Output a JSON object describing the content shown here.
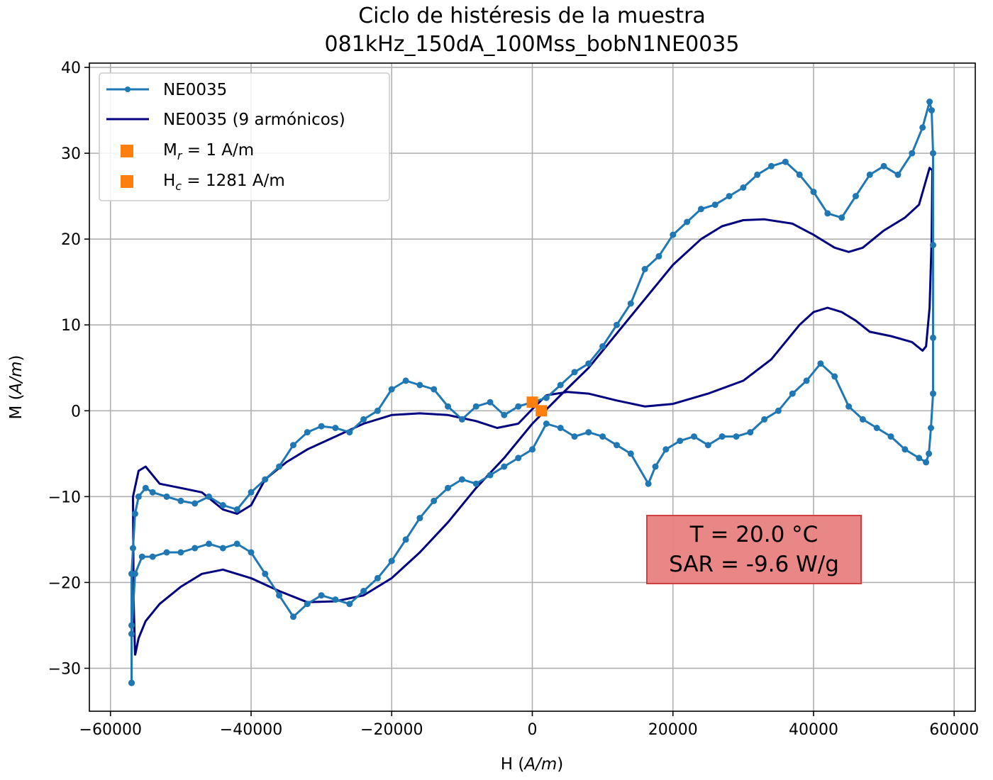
{
  "chart_data": {
    "type": "line",
    "title": [
      "Ciclo de histéresis de la muestra",
      "081kHz_150dA_100Mss_bobN1NE0035"
    ],
    "xlabel": "H (A/m)",
    "ylabel": "M (A/m)",
    "xlabel_parts": {
      "main": "H (",
      "unit": "A/m",
      "close": ")"
    },
    "ylabel_parts": {
      "main": "M (",
      "unit": "A/m",
      "close": ")"
    },
    "xlim": [
      -63000,
      63000
    ],
    "ylim": [
      -35,
      40.5
    ],
    "xticks": [
      -60000,
      -40000,
      -20000,
      0,
      20000,
      40000,
      60000
    ],
    "xtick_labels": [
      "−60000",
      "−40000",
      "−20000",
      "0",
      "20000",
      "40000",
      "60000"
    ],
    "yticks": [
      -30,
      -20,
      -10,
      0,
      10,
      20,
      30,
      40
    ],
    "ytick_labels": [
      "−30",
      "−20",
      "−10",
      "0",
      "10",
      "20",
      "30",
      "40"
    ],
    "grid": true,
    "legend": {
      "placement": "upper-left",
      "entries": [
        {
          "label": "NE0035",
          "style": "line-marker",
          "color": "#1f77b4"
        },
        {
          "label": "NE0035 (9 armónicos)",
          "style": "line",
          "color": "#000080"
        },
        {
          "label_main": "M",
          "label_sub": "r",
          "label_rest": " = 1 A/m",
          "style": "square",
          "color": "#ff7f0e"
        },
        {
          "label_main": "H",
          "label_sub": "c",
          "label_rest": " = 1281 A/m",
          "style": "square",
          "color": "#ff7f0e"
        }
      ]
    },
    "annotation": {
      "lines": [
        "T = 20.0 °C",
        "SAR = -9.6 W/g"
      ],
      "facecolor": "#e88080",
      "edgecolor": "#d04040"
    },
    "series": [
      {
        "name": "NE0035",
        "color": "#1f77b4",
        "marker": "circle",
        "points": [
          [
            -57000,
            -31.7
          ],
          [
            -57000,
            -25
          ],
          [
            -57000,
            -19
          ],
          [
            -56800,
            -16
          ],
          [
            -56500,
            -12
          ],
          [
            -56000,
            -10
          ],
          [
            -55000,
            -9
          ],
          [
            -54000,
            -9.5
          ],
          [
            -52000,
            -10
          ],
          [
            -50000,
            -10.5
          ],
          [
            -48000,
            -10.8
          ],
          [
            -46000,
            -10
          ],
          [
            -44000,
            -11
          ],
          [
            -42000,
            -11.5
          ],
          [
            -40000,
            -9.5
          ],
          [
            -38000,
            -8
          ],
          [
            -36000,
            -6.5
          ],
          [
            -34000,
            -4
          ],
          [
            -32000,
            -2.5
          ],
          [
            -30000,
            -1.8
          ],
          [
            -28000,
            -2
          ],
          [
            -26000,
            -2.5
          ],
          [
            -24000,
            -1
          ],
          [
            -22000,
            0
          ],
          [
            -20000,
            2.5
          ],
          [
            -18000,
            3.5
          ],
          [
            -16000,
            3
          ],
          [
            -14000,
            2.5
          ],
          [
            -12000,
            0.5
          ],
          [
            -10000,
            -1
          ],
          [
            -8000,
            0.5
          ],
          [
            -6000,
            1
          ],
          [
            -4000,
            -0.5
          ],
          [
            -2000,
            0.5
          ],
          [
            0,
            1
          ],
          [
            2000,
            1.5
          ],
          [
            4000,
            3
          ],
          [
            6000,
            4.5
          ],
          [
            8000,
            5.5
          ],
          [
            10000,
            7.5
          ],
          [
            12000,
            10
          ],
          [
            14000,
            12.5
          ],
          [
            16000,
            16.5
          ],
          [
            18000,
            18
          ],
          [
            20000,
            20.5
          ],
          [
            22000,
            22
          ],
          [
            24000,
            23.5
          ],
          [
            26000,
            24
          ],
          [
            28000,
            25
          ],
          [
            30000,
            26
          ],
          [
            32000,
            27.5
          ],
          [
            34000,
            28.5
          ],
          [
            36000,
            29
          ],
          [
            38000,
            27.5
          ],
          [
            40000,
            25.5
          ],
          [
            42000,
            23
          ],
          [
            44000,
            22.5
          ],
          [
            46000,
            25
          ],
          [
            48000,
            27.5
          ],
          [
            50000,
            28.5
          ],
          [
            52000,
            27.5
          ],
          [
            54000,
            30
          ],
          [
            55500,
            33
          ],
          [
            56500,
            36
          ],
          [
            56800,
            35
          ],
          [
            57000,
            30
          ],
          [
            57000,
            19.3
          ],
          [
            57000,
            8.5
          ],
          [
            57000,
            2
          ],
          [
            56700,
            -2
          ],
          [
            56400,
            -5
          ],
          [
            56000,
            -6
          ],
          [
            55000,
            -5.5
          ],
          [
            53000,
            -4.5
          ],
          [
            51000,
            -3
          ],
          [
            49000,
            -2
          ],
          [
            47000,
            -1
          ],
          [
            45000,
            0.5
          ],
          [
            43000,
            4
          ],
          [
            41000,
            5.5
          ],
          [
            39000,
            3.5
          ],
          [
            37000,
            2
          ],
          [
            35000,
            0
          ],
          [
            33000,
            -1
          ],
          [
            31000,
            -2.5
          ],
          [
            29000,
            -3
          ],
          [
            27000,
            -3
          ],
          [
            25000,
            -4
          ],
          [
            23000,
            -3
          ],
          [
            21000,
            -3.5
          ],
          [
            19000,
            -4.5
          ],
          [
            17500,
            -6.5
          ],
          [
            16500,
            -8.5
          ],
          [
            14000,
            -5
          ],
          [
            12000,
            -4
          ],
          [
            10000,
            -3
          ],
          [
            8000,
            -2.5
          ],
          [
            6000,
            -3
          ],
          [
            4000,
            -2
          ],
          [
            2000,
            -1.5
          ],
          [
            0,
            -4.5
          ],
          [
            -2000,
            -5.5
          ],
          [
            -4000,
            -6.5
          ],
          [
            -6000,
            -7.5
          ],
          [
            -8000,
            -8.5
          ],
          [
            -10000,
            -8
          ],
          [
            -12000,
            -9
          ],
          [
            -14000,
            -10.5
          ],
          [
            -16000,
            -12.5
          ],
          [
            -18000,
            -15
          ],
          [
            -20000,
            -17.5
          ],
          [
            -22000,
            -19.5
          ],
          [
            -24000,
            -21
          ],
          [
            -26000,
            -22.5
          ],
          [
            -28000,
            -22
          ],
          [
            -30000,
            -21.5
          ],
          [
            -32000,
            -22.5
          ],
          [
            -34000,
            -24
          ],
          [
            -36000,
            -21.5
          ],
          [
            -38000,
            -19
          ],
          [
            -40000,
            -16.5
          ],
          [
            -42000,
            -15.5
          ],
          [
            -44000,
            -16
          ],
          [
            -46000,
            -15.5
          ],
          [
            -48000,
            -16
          ],
          [
            -50000,
            -16.5
          ],
          [
            -52000,
            -16.5
          ],
          [
            -54000,
            -17
          ],
          [
            -55500,
            -17
          ],
          [
            -56500,
            -19
          ],
          [
            -57000,
            -26
          ],
          [
            -57000,
            -31.7
          ]
        ]
      },
      {
        "name": "NE0035 (9 armónicos)",
        "color": "#000080",
        "points": [
          [
            -56500,
            -28.5
          ],
          [
            -56700,
            -22
          ],
          [
            -56800,
            -10
          ],
          [
            -56000,
            -7
          ],
          [
            -55000,
            -6.5
          ],
          [
            -53000,
            -8.5
          ],
          [
            -50000,
            -9
          ],
          [
            -47000,
            -9.5
          ],
          [
            -44000,
            -11.5
          ],
          [
            -42000,
            -12
          ],
          [
            -40000,
            -11
          ],
          [
            -38000,
            -8
          ],
          [
            -35000,
            -6
          ],
          [
            -32000,
            -4.5
          ],
          [
            -28000,
            -3
          ],
          [
            -24000,
            -1.5
          ],
          [
            -20000,
            -0.5
          ],
          [
            -16000,
            -0.3
          ],
          [
            -12000,
            -0.5
          ],
          [
            -8000,
            -1.2
          ],
          [
            -5000,
            -2
          ],
          [
            -2000,
            -1.5
          ],
          [
            0,
            0.2
          ],
          [
            2000,
            1.8
          ],
          [
            5000,
            2.2
          ],
          [
            8000,
            2
          ],
          [
            12000,
            1.2
          ],
          [
            16000,
            0.5
          ],
          [
            20000,
            0.8
          ],
          [
            25000,
            2
          ],
          [
            30000,
            3.5
          ],
          [
            34000,
            6
          ],
          [
            38000,
            10
          ],
          [
            40000,
            11.5
          ],
          [
            42000,
            12
          ],
          [
            44000,
            11.5
          ],
          [
            46000,
            10.5
          ],
          [
            48000,
            9.2
          ],
          [
            51000,
            8.7
          ],
          [
            54000,
            8
          ],
          [
            55500,
            7
          ],
          [
            56000,
            7.5
          ],
          [
            56500,
            12
          ],
          [
            56800,
            20
          ],
          [
            56900,
            28
          ],
          [
            56500,
            28.3
          ],
          [
            55000,
            24
          ],
          [
            53000,
            22.5
          ],
          [
            50000,
            21
          ],
          [
            47000,
            19
          ],
          [
            45000,
            18.5
          ],
          [
            43000,
            19
          ],
          [
            40000,
            20.5
          ],
          [
            37000,
            21.8
          ],
          [
            33000,
            22.3
          ],
          [
            30000,
            22.2
          ],
          [
            27000,
            21.5
          ],
          [
            24000,
            20
          ],
          [
            20000,
            17
          ],
          [
            16000,
            13
          ],
          [
            12000,
            9
          ],
          [
            8000,
            5
          ],
          [
            4000,
            1.8
          ],
          [
            0,
            -1.5
          ],
          [
            -4000,
            -5.5
          ],
          [
            -8000,
            -9
          ],
          [
            -12000,
            -13
          ],
          [
            -16000,
            -16.5
          ],
          [
            -20000,
            -19.5
          ],
          [
            -24000,
            -21.5
          ],
          [
            -28000,
            -22.2
          ],
          [
            -32000,
            -22.3
          ],
          [
            -36000,
            -21
          ],
          [
            -40000,
            -19.5
          ],
          [
            -44000,
            -18.5
          ],
          [
            -47000,
            -19
          ],
          [
            -50000,
            -20.5
          ],
          [
            -53000,
            -22.5
          ],
          [
            -55000,
            -24.5
          ],
          [
            -56000,
            -26.5
          ],
          [
            -56500,
            -28.5
          ]
        ]
      },
      {
        "name": "M_r",
        "color": "#ff7f0e",
        "marker": "square",
        "points": [
          [
            0,
            1
          ]
        ]
      },
      {
        "name": "H_c",
        "color": "#ff7f0e",
        "marker": "square",
        "points": [
          [
            1281,
            0
          ]
        ]
      }
    ]
  }
}
